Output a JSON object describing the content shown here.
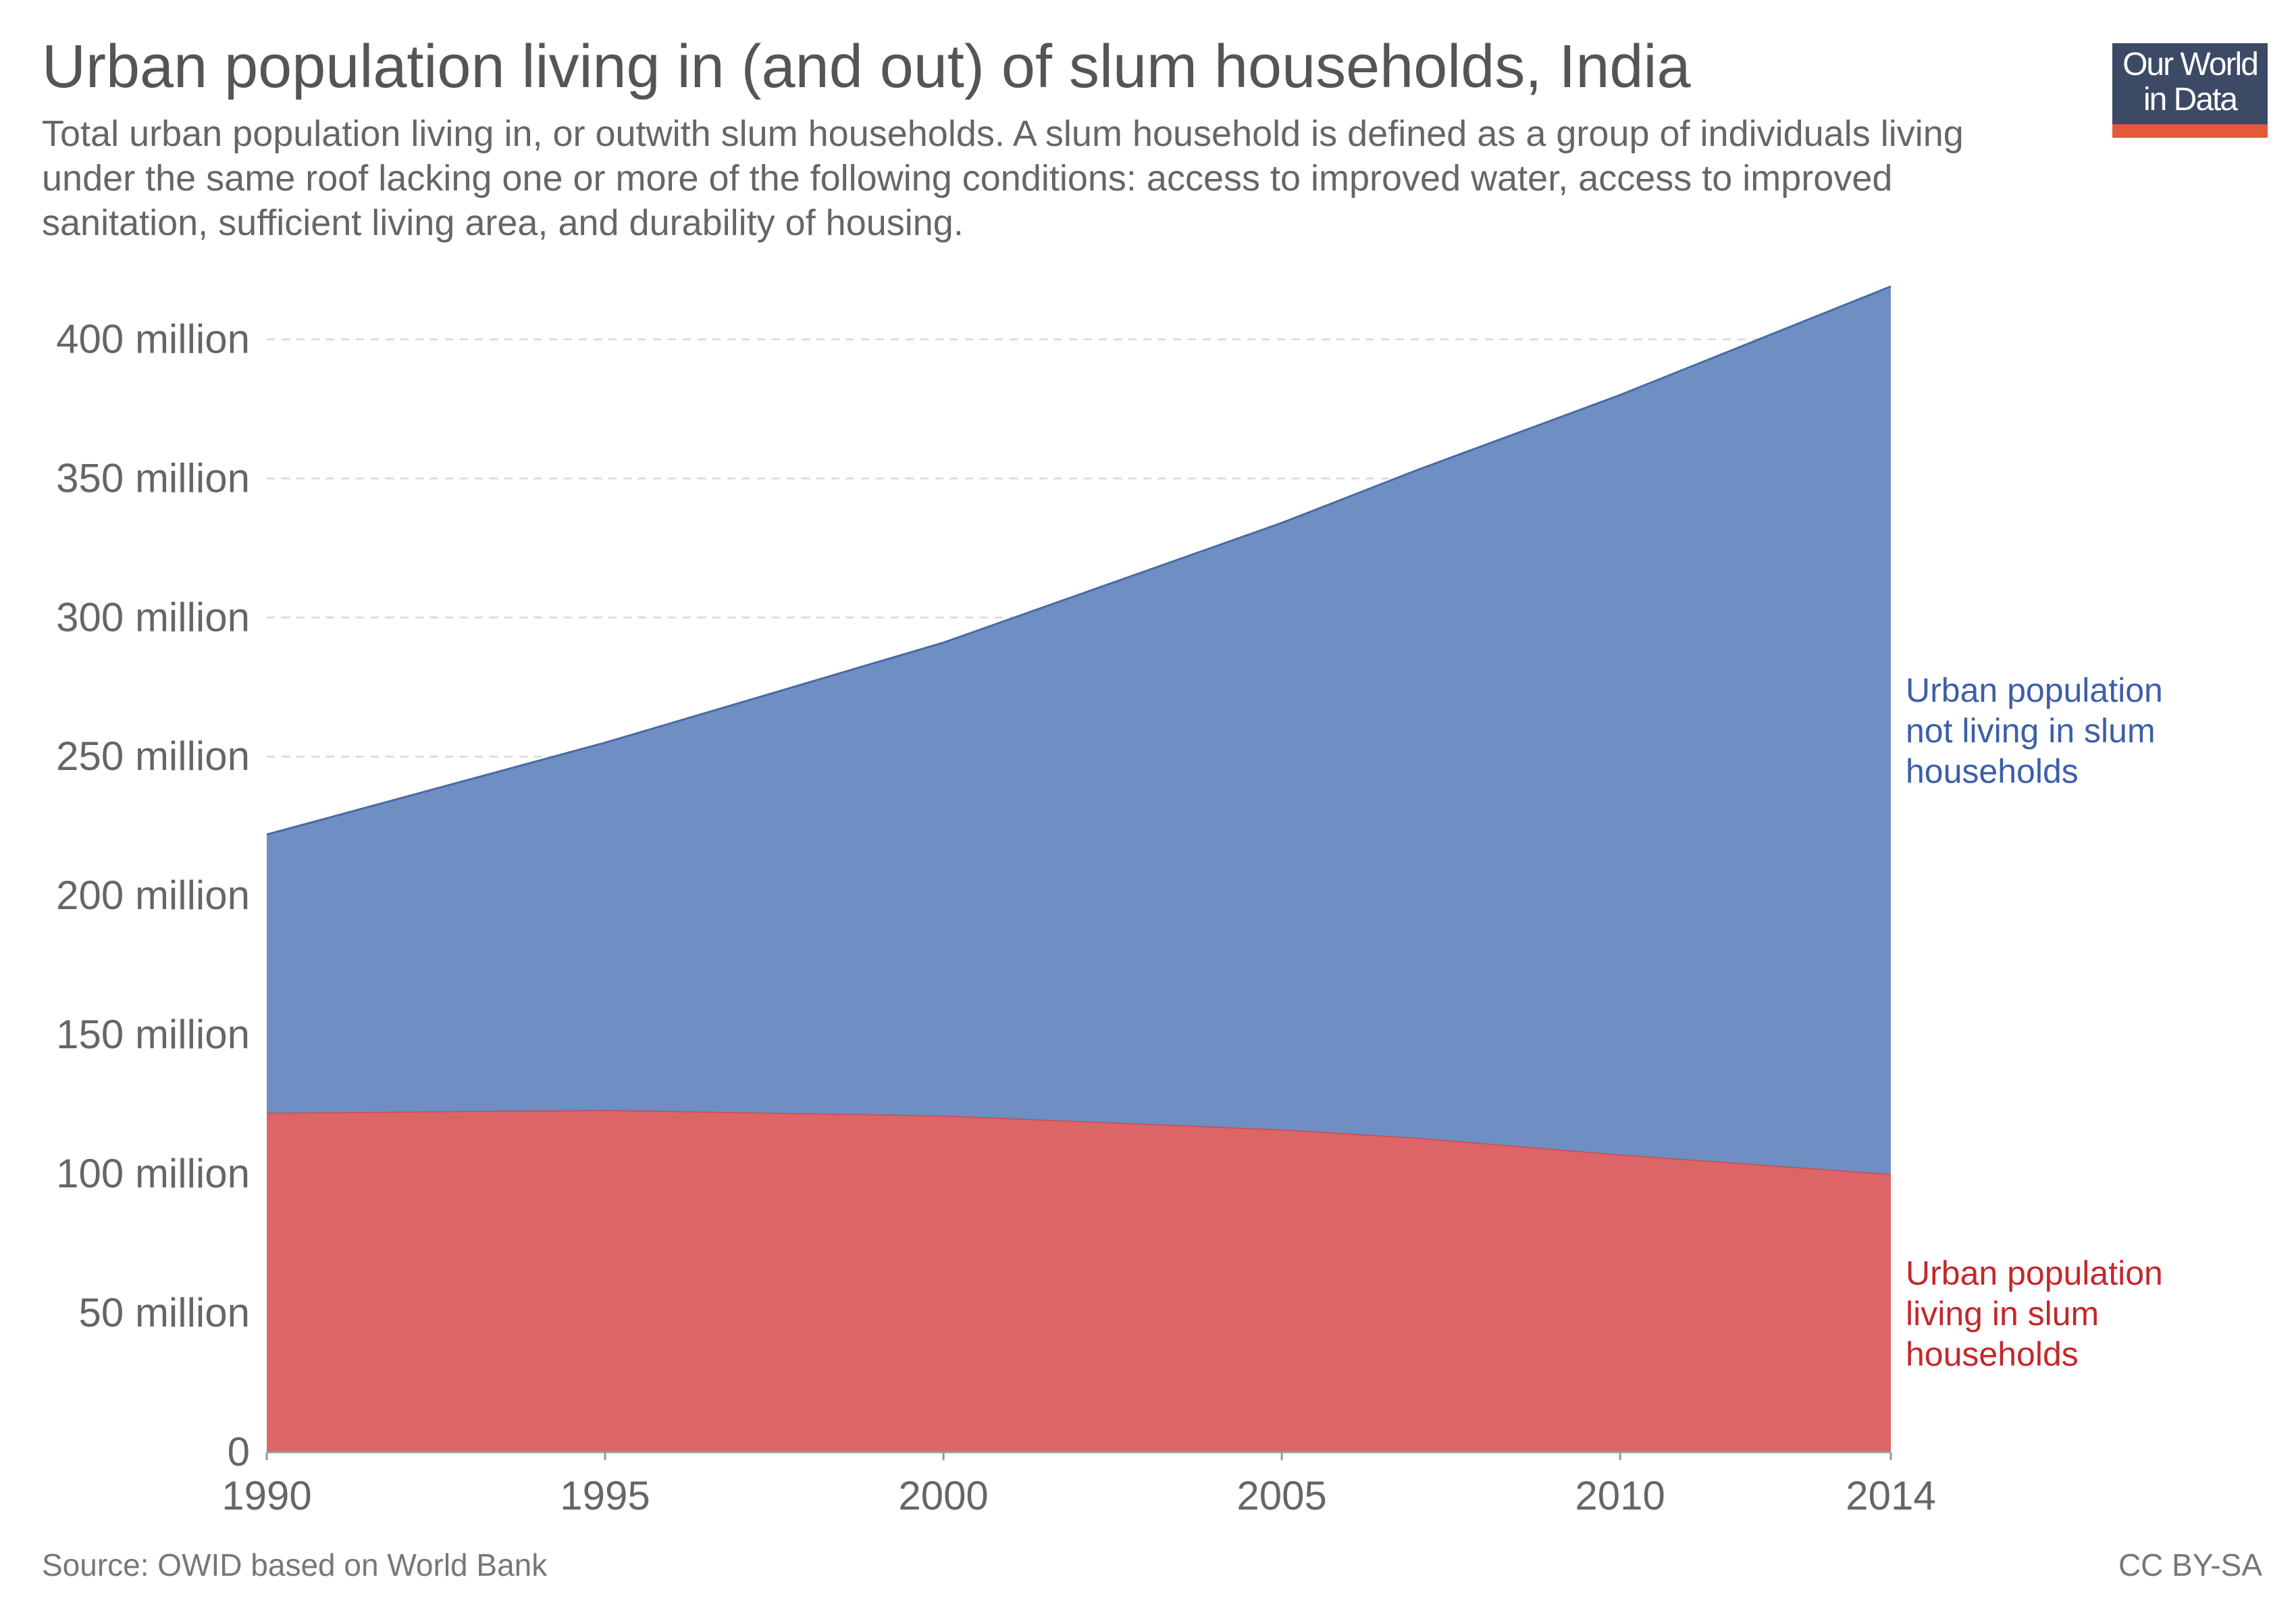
{
  "header": {
    "title": "Urban population living in (and out) of slum households, India",
    "subtitle": "Total urban population living in, or outwith slum households. A slum household is defined as a group of individuals living under the same roof lacking one or more of the following conditions: access to improved water, access to improved sanitation, sufficient living area, and durability of housing."
  },
  "logo": {
    "line1": "Our World",
    "line2": "in Data"
  },
  "footer": {
    "source": "Source: OWID based on World Bank",
    "license": "CC BY-SA"
  },
  "colors": {
    "slum": "#dd6567",
    "not_slum": "#6f8ec3",
    "slum_label": "#c4272b",
    "not_slum_label": "#3d5ea8"
  },
  "chart_data": {
    "type": "area",
    "stacked": true,
    "x": [
      1990,
      1995,
      2000,
      2005,
      2007,
      2010,
      2014
    ],
    "series": [
      {
        "name": "Urban population living in slum households",
        "label_lines": [
          "Urban population",
          "living in slum",
          "households"
        ],
        "values": [
          122,
          123,
          121,
          116,
          113,
          107,
          100
        ]
      },
      {
        "name": "Urban population not living in slum households",
        "label_lines": [
          "Urban population",
          "not living in slum",
          "households"
        ],
        "values": [
          100,
          132,
          170,
          218,
          240,
          273,
          319
        ]
      }
    ],
    "xticks": [
      1990,
      1995,
      2000,
      2005,
      2010,
      2014
    ],
    "xtick_labels": [
      "1990",
      "1995",
      "2000",
      "2005",
      "2010",
      "2014"
    ],
    "yticks": [
      0,
      50,
      100,
      150,
      200,
      250,
      300,
      350,
      400
    ],
    "ytick_labels": [
      "0",
      "50 million",
      "100 million",
      "150 million",
      "200 million",
      "250 million",
      "300 million",
      "350 million",
      "400 million"
    ],
    "xlim": [
      1990,
      2014
    ],
    "ylim": [
      0,
      420
    ],
    "grid": "horizontal-dashed",
    "legend": "right-inline"
  }
}
